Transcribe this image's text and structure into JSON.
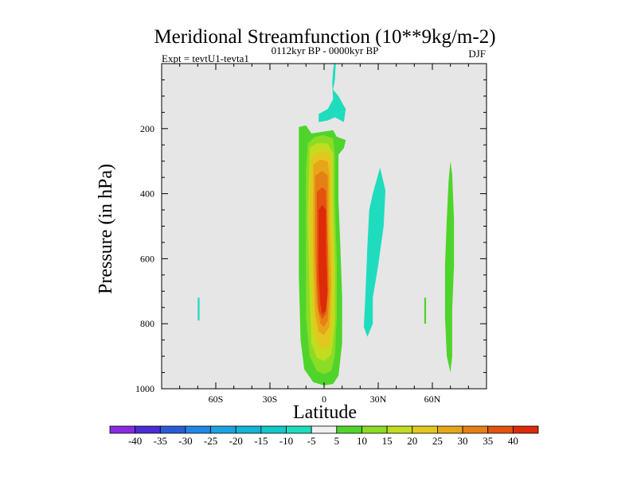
{
  "chart_data": {
    "type": "filled-contour",
    "title": "Meridional Streamfunction (10**9kg/m-2)",
    "experiment": "Expt = tevtU1-tevta1",
    "period": "0112kyr BP - 0000kyr BP",
    "season": "DJF",
    "xlabel": "Latitude",
    "ylabel": "Pressure (in hPa)",
    "xlim": [
      -90,
      90
    ],
    "ylim": [
      0,
      1000
    ],
    "y_reversed": true,
    "x_ticks": [
      {
        "value": -60,
        "label": "60S"
      },
      {
        "value": -30,
        "label": "30S"
      },
      {
        "value": 0,
        "label": "0"
      },
      {
        "value": 30,
        "label": "30N"
      },
      {
        "value": 60,
        "label": "60N"
      }
    ],
    "y_ticks": [
      {
        "value": 200,
        "label": "200"
      },
      {
        "value": 400,
        "label": "400"
      },
      {
        "value": 600,
        "label": "600"
      },
      {
        "value": 800,
        "label": "800"
      },
      {
        "value": 1000,
        "label": "1000"
      }
    ],
    "background_color": "#e6e6e6",
    "contour_levels": [
      -40,
      -35,
      -30,
      -25,
      -20,
      -15,
      -10,
      -5,
      5,
      10,
      15,
      20,
      25,
      30,
      35,
      40
    ],
    "colorbar_colors": [
      "#8a2be2",
      "#4b2bd6",
      "#2a5bd7",
      "#1e88e5",
      "#1aa3e0",
      "#12b4d8",
      "#13c8c8",
      "#20dcbe",
      "#f0f0f0",
      "#4fd42b",
      "#8bdc24",
      "#c2dc1f",
      "#e2c81e",
      "#e6a618",
      "#e67f14",
      "#e4520f",
      "#dd2a08"
    ],
    "regions": [
      {
        "name": "strat-cell-top",
        "color": "#20dcbe",
        "points": [
          [
            5.5,
            0
          ],
          [
            6.5,
            0
          ],
          [
            6,
            50
          ],
          [
            5,
            80
          ],
          [
            8,
            100
          ],
          [
            12,
            140
          ],
          [
            11,
            180
          ],
          [
            6,
            165
          ],
          [
            2,
            175
          ],
          [
            -3,
            180
          ],
          [
            -3,
            155
          ],
          [
            2,
            140
          ],
          [
            5,
            110
          ],
          [
            4.5,
            60
          ],
          [
            5,
            20
          ]
        ]
      },
      {
        "name": "nh-cell-30n",
        "color": "#20dcbe",
        "points": [
          [
            27,
            400
          ],
          [
            31,
            320
          ],
          [
            34,
            390
          ],
          [
            33,
            500
          ],
          [
            30,
            620
          ],
          [
            27,
            720
          ],
          [
            27,
            800
          ],
          [
            24,
            840
          ],
          [
            22,
            810
          ],
          [
            23,
            700
          ],
          [
            24,
            560
          ],
          [
            25,
            450
          ]
        ]
      },
      {
        "name": "sh-sliver-70s",
        "color": "#20dcbe",
        "points": [
          [
            -70,
            720
          ],
          [
            -69,
            720
          ],
          [
            -69,
            790
          ],
          [
            -70,
            790
          ]
        ]
      },
      {
        "name": "green-sliver-55n",
        "color": "#4fd42b",
        "points": [
          [
            55.5,
            720
          ],
          [
            56.5,
            720
          ],
          [
            56.5,
            800
          ],
          [
            55.5,
            800
          ]
        ]
      },
      {
        "name": "green-band-70n",
        "color": "#4fd42b",
        "points": [
          [
            70,
            300
          ],
          [
            71,
            340
          ],
          [
            72,
            480
          ],
          [
            72,
            620
          ],
          [
            71,
            760
          ],
          [
            71,
            900
          ],
          [
            70,
            950
          ],
          [
            68,
            900
          ],
          [
            67,
            780
          ],
          [
            67,
            620
          ],
          [
            68,
            480
          ],
          [
            69,
            360
          ]
        ]
      },
      {
        "name": "c5",
        "color": "#4fd42b",
        "points": [
          [
            -14,
            195
          ],
          [
            -10,
            190
          ],
          [
            -7,
            215
          ],
          [
            5,
            205
          ],
          [
            7,
            225
          ],
          [
            12,
            235
          ],
          [
            11,
            260
          ],
          [
            8,
            280
          ],
          [
            8,
            420
          ],
          [
            9,
            560
          ],
          [
            10,
            720
          ],
          [
            10,
            860
          ],
          [
            8,
            960
          ],
          [
            5,
            985
          ],
          [
            0,
            990
          ],
          [
            -6,
            980
          ],
          [
            -11,
            940
          ],
          [
            -13,
            850
          ],
          [
            -14,
            650
          ],
          [
            -14,
            350
          ]
        ]
      },
      {
        "name": "c10",
        "color": "#8bdc24",
        "points": [
          [
            -9,
            245
          ],
          [
            -5,
            225
          ],
          [
            0,
            220
          ],
          [
            5,
            230
          ],
          [
            6,
            280
          ],
          [
            6,
            420
          ],
          [
            7,
            600
          ],
          [
            7,
            780
          ],
          [
            6,
            900
          ],
          [
            4,
            945
          ],
          [
            0,
            955
          ],
          [
            -4,
            945
          ],
          [
            -8,
            900
          ],
          [
            -10,
            780
          ],
          [
            -10,
            520
          ],
          [
            -10,
            330
          ]
        ]
      },
      {
        "name": "c15",
        "color": "#c2dc1f",
        "points": [
          [
            -8,
            260
          ],
          [
            -4,
            245
          ],
          [
            2,
            245
          ],
          [
            5,
            275
          ],
          [
            5,
            420
          ],
          [
            6,
            620
          ],
          [
            6,
            800
          ],
          [
            4,
            895
          ],
          [
            0,
            915
          ],
          [
            -4,
            905
          ],
          [
            -7,
            860
          ],
          [
            -8,
            720
          ],
          [
            -9,
            480
          ]
        ]
      },
      {
        "name": "c20",
        "color": "#e2c81e",
        "points": [
          [
            -7,
            285
          ],
          [
            -3,
            270
          ],
          [
            2,
            270
          ],
          [
            4,
            300
          ],
          [
            4,
            460
          ],
          [
            5,
            650
          ],
          [
            4,
            820
          ],
          [
            3,
            870
          ],
          [
            0,
            880
          ],
          [
            -3,
            870
          ],
          [
            -6,
            810
          ],
          [
            -7,
            640
          ],
          [
            -8,
            440
          ]
        ]
      },
      {
        "name": "c25",
        "color": "#e6a618",
        "points": [
          [
            -6,
            310
          ],
          [
            -2,
            295
          ],
          [
            2,
            300
          ],
          [
            3,
            340
          ],
          [
            3,
            500
          ],
          [
            4,
            680
          ],
          [
            3,
            810
          ],
          [
            0,
            835
          ],
          [
            -3,
            825
          ],
          [
            -5,
            770
          ],
          [
            -6,
            600
          ],
          [
            -6,
            420
          ]
        ]
      },
      {
        "name": "c30",
        "color": "#e67f14",
        "points": [
          [
            -5,
            345
          ],
          [
            -1,
            330
          ],
          [
            2,
            345
          ],
          [
            2,
            540
          ],
          [
            3,
            700
          ],
          [
            2,
            790
          ],
          [
            0,
            810
          ],
          [
            -2,
            800
          ],
          [
            -4,
            740
          ],
          [
            -5,
            580
          ],
          [
            -5,
            450
          ]
        ]
      },
      {
        "name": "c35",
        "color": "#e4520f",
        "points": [
          [
            -4,
            395
          ],
          [
            -1,
            380
          ],
          [
            1,
            390
          ],
          [
            2,
            560
          ],
          [
            2,
            710
          ],
          [
            1,
            770
          ],
          [
            -1,
            785
          ],
          [
            -3,
            760
          ],
          [
            -4,
            660
          ],
          [
            -4,
            500
          ]
        ]
      },
      {
        "name": "c40",
        "color": "#dd2a08",
        "points": [
          [
            -3,
            450
          ],
          [
            -1,
            435
          ],
          [
            1,
            450
          ],
          [
            1,
            580
          ],
          [
            2,
            700
          ],
          [
            1,
            760
          ],
          [
            -1,
            770
          ],
          [
            -2,
            740
          ],
          [
            -3,
            650
          ],
          [
            -3,
            540
          ]
        ]
      }
    ]
  }
}
